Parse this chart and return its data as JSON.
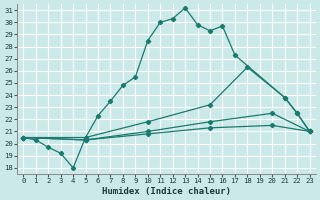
{
  "xlabel": "Humidex (Indice chaleur)",
  "xlim": [
    -0.5,
    23.5
  ],
  "ylim": [
    17.5,
    31.5
  ],
  "xticks": [
    0,
    1,
    2,
    3,
    4,
    5,
    6,
    7,
    8,
    9,
    10,
    11,
    12,
    13,
    14,
    15,
    16,
    17,
    18,
    19,
    20,
    21,
    22,
    23
  ],
  "yticks": [
    18,
    19,
    20,
    21,
    22,
    23,
    24,
    25,
    26,
    27,
    28,
    29,
    30,
    31
  ],
  "bg_color": "#cce9ea",
  "line_color": "#1a7a6e",
  "grid_color": "#ffffff",
  "line1_x": [
    0,
    1,
    2,
    3,
    4,
    5,
    6,
    7,
    8,
    9,
    10,
    11,
    12,
    13,
    14,
    15,
    16,
    17,
    21,
    22,
    23
  ],
  "line1_y": [
    20.5,
    20.3,
    19.7,
    19.2,
    18.0,
    20.5,
    22.3,
    23.5,
    24.8,
    25.5,
    28.5,
    30.0,
    30.3,
    31.2,
    29.8,
    29.3,
    29.7,
    27.3,
    23.8,
    22.5,
    21.0
  ],
  "line2_x": [
    0,
    5,
    10,
    15,
    18,
    21,
    22,
    23
  ],
  "line2_y": [
    20.5,
    20.5,
    21.8,
    23.2,
    26.3,
    23.8,
    22.5,
    21.0
  ],
  "line3_x": [
    0,
    5,
    10,
    15,
    20,
    23
  ],
  "line3_y": [
    20.5,
    20.3,
    21.0,
    21.8,
    22.5,
    21.0
  ],
  "line4_x": [
    0,
    5,
    10,
    15,
    20,
    23
  ],
  "line4_y": [
    20.5,
    20.3,
    20.8,
    21.3,
    21.5,
    21.0
  ]
}
